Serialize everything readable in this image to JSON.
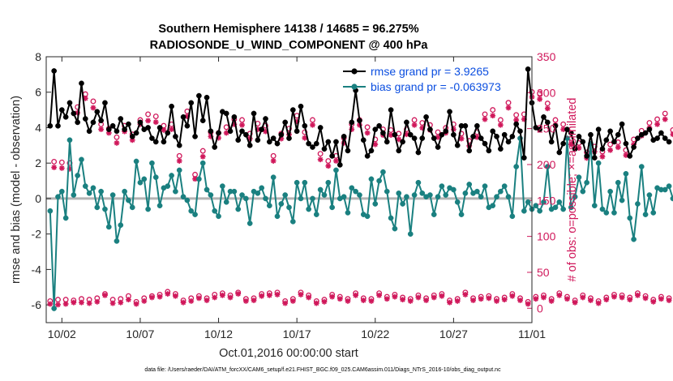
{
  "colors": {
    "rmse": "#000000",
    "bias": "#1a8080",
    "obs": "#d0185b",
    "zero_line": "#b3b3b3",
    "legend_text": "#0b4ee0"
  },
  "footnote": "data file: /Users/raeder/DAI/ATM_forcXX/CAM6_setup/f.e21.FHIST_BGC.f09_025.CAM6assim.011/Diags_NTrS_2016-10/obs_diag_output.nc",
  "chart_data": {
    "type": "line",
    "title": "Southern Hemisphere 14138 / 14685 = 96.275%",
    "subtitle": "RADIOSONDE_U_WIND_COMPONENT @ 400 hPa",
    "xlabel": "Oct.01,2016 00:00:00 start",
    "ylabel": "rmse and bias (model - observation)",
    "y2label": "# of obs: o=possible; ×=assimilated",
    "x_tick_labels": [
      "10/02",
      "10/07",
      "10/12",
      "10/17",
      "10/22",
      "10/27",
      "11/01"
    ],
    "x_tick_days": [
      2,
      7,
      12,
      17,
      22,
      27,
      32
    ],
    "xlim": [
      1,
      32
    ],
    "ylim": [
      -7,
      8
    ],
    "y_ticks": [
      -6,
      -4,
      -2,
      0,
      2,
      4,
      6,
      8
    ],
    "y2lim": [
      -20,
      350
    ],
    "y2_ticks": [
      0,
      50,
      100,
      150,
      200,
      250,
      300,
      350
    ],
    "legend_position": "top-right",
    "x_start": 1.25,
    "x_step": 0.25,
    "series": [
      {
        "name": "rmse grand pr = 3.9265",
        "axis": "left",
        "marker": "filled-circle",
        "values": [
          4.1,
          7.2,
          4.1,
          5.0,
          4.6,
          5.4,
          4.8,
          4.3,
          6.5,
          4.5,
          3.8,
          4.3,
          4.9,
          4.4,
          5.4,
          3.9,
          4.1,
          3.8,
          4.5,
          3.9,
          4.2,
          3.5,
          3.7,
          4.3,
          3.9,
          4.0,
          3.4,
          3.2,
          4.0,
          3.2,
          3.7,
          5.2,
          3.5,
          3.0,
          4.6,
          4.1,
          5.4,
          3.5,
          5.8,
          4.4,
          5.7,
          3.8,
          2.9,
          3.7,
          4.9,
          4.8,
          3.8,
          4.6,
          3.3,
          3.8,
          3.6,
          3.0,
          4.8,
          3.3,
          3.9,
          4.5,
          3.2,
          3.4,
          3.1,
          3.6,
          4.3,
          3.4,
          5.0,
          3.8,
          5.2,
          4.1,
          3.1,
          2.9,
          3.1,
          4.0,
          2.8,
          3.2,
          2.4,
          3.2,
          1.9,
          3.5,
          2.7,
          4.3,
          6.1,
          4.4,
          3.3,
          2.4,
          2.7,
          3.9,
          4.1,
          3.7,
          3.2,
          5.0,
          3.6,
          2.7,
          3.2,
          4.3,
          3.6,
          3.4,
          2.6,
          3.4,
          4.6,
          3.9,
          3.4,
          2.9,
          3.6,
          3.8,
          4.9,
          3.6,
          3.0,
          4.1,
          4.1,
          2.7,
          3.5,
          4.1,
          3.4,
          3.1,
          2.7,
          3.8,
          3.5,
          2.8,
          3.6,
          3.2,
          3.5,
          4.2,
          3.8,
          2.3,
          7.3,
          5.4,
          4.0,
          3.9,
          4.6,
          4.3,
          3.2,
          4.1,
          2.6,
          3.1,
          3.9,
          3.7,
          2.8,
          3.5,
          3.2,
          2.4,
          3.6,
          2.3,
          3.9,
          2.8,
          3.3,
          3.8,
          3.2,
          3.6,
          4.2,
          3.1,
          2.4,
          2.9,
          3.4,
          3.6,
          3.7,
          3.9,
          3.3,
          3.4,
          3.7,
          3.4,
          3.2
        ]
      },
      {
        "name": "bias grand pr = -0.063973",
        "axis": "left",
        "marker": "filled-circle",
        "values": [
          -0.7,
          -6.2,
          0.1,
          0.4,
          -1.1,
          3.3,
          0.2,
          1.3,
          2.2,
          0.7,
          0.3,
          0.6,
          -0.5,
          0.4,
          -0.6,
          -1.6,
          0.2,
          -2.4,
          -1.5,
          0.4,
          -0.1,
          -0.5,
          2.1,
          0.9,
          1.1,
          -0.6,
          2.0,
          1.2,
          -0.4,
          0.6,
          0.7,
          1.3,
          0.4,
          1.6,
          0.1,
          -0.1,
          -0.7,
          -0.9,
          1.1,
          2.0,
          0.5,
          0.2,
          -0.7,
          -1.0,
          0.7,
          -0.2,
          0.4,
          0.4,
          -0.6,
          0.2,
          0.0,
          -1.4,
          0.4,
          0.3,
          0.6,
          0.0,
          -0.4,
          1.2,
          -1.0,
          -0.3,
          0.2,
          -0.5,
          -1.3,
          0.9,
          0.0,
          0.9,
          -0.6,
          0.0,
          -0.9,
          0.5,
          0.2,
          0.9,
          -0.5,
          1.6,
          0.0,
          0.1,
          -0.8,
          0.6,
          0.4,
          0.2,
          -0.9,
          -1.0,
          1.1,
          -0.3,
          1.0,
          1.5,
          0.4,
          -1.1,
          -1.7,
          0.3,
          -0.3,
          0.1,
          -2.0,
          0.2,
          0.9,
          0.3,
          0.1,
          0.2,
          -0.9,
          0.1,
          0.7,
          0.2,
          0.6,
          0.5,
          -0.2,
          -0.9,
          0.3,
          0.8,
          0.3,
          0.4,
          0.1,
          0.7,
          -0.5,
          -0.4,
          0.1,
          0.4,
          0.7,
          0.1,
          -1.0,
          1.8,
          3.4,
          -0.7,
          -0.2,
          -0.6,
          -0.4,
          -0.7,
          -0.2,
          1.8,
          -0.6,
          -0.5,
          -0.2,
          -0.6,
          3.4,
          -0.5,
          0.1,
          1.2,
          0.4,
          0.9,
          3.1,
          -0.4,
          2.0,
          -0.6,
          -0.8,
          0.4,
          -0.8,
          0.9,
          -0.1,
          1.4,
          -1.1,
          -2.3,
          -0.3,
          1.8,
          -0.9,
          0.2,
          -0.8,
          0.6,
          0.5,
          0.5,
          0.7,
          0.0
        ]
      },
      {
        "name": "obs possible",
        "axis": "right",
        "marker": "open-circle",
        "values": [
          10,
          204,
          12,
          203,
          12,
          202,
          11,
          280,
          13,
          298,
          12,
          288,
          14,
          256,
          20,
          250,
          12,
          238,
          13,
          254,
          17,
          242,
          9,
          262,
          14,
          270,
          17,
          267,
          19,
          254,
          23,
          256,
          20,
          212,
          11,
          274,
          14,
          186,
          17,
          219,
          14,
          245,
          19,
          244,
          21,
          252,
          18,
          263,
          22,
          262,
          13,
          243,
          14,
          257,
          20,
          254,
          21,
          212,
          22,
          243,
          10,
          250,
          13,
          268,
          22,
          245,
          18,
          262,
          10,
          215,
          12,
          205,
          19,
          212,
          16,
          237,
          13,
          256,
          21,
          262,
          14,
          252,
          13,
          235,
          21,
          249,
          16,
          248,
          19,
          243,
          15,
          249,
          13,
          262,
          18,
          258,
          14,
          255,
          18,
          245,
          20,
          251,
          11,
          256,
          13,
          243,
          22,
          233,
          14,
          245,
          16,
          270,
          17,
          276,
          13,
          262,
          15,
          286,
          20,
          269,
          14,
          270,
          9,
          301,
          16,
          299,
          18,
          285,
          13,
          262,
          21,
          256,
          16,
          236,
          11,
          230,
          18,
          217,
          14,
          225,
          10,
          218,
          15,
          228,
          19,
          231,
          18,
          220,
          15,
          235,
          21,
          247,
          17,
          258,
          12,
          263,
          16,
          271,
          14,
          248,
          3,
          260
        ]
      },
      {
        "name": "obs assimilated",
        "axis": "right",
        "marker": "asterisk",
        "values": [
          6,
          196,
          5,
          195,
          6,
          194,
          8,
          272,
          8,
          292,
          7,
          279,
          9,
          249,
          18,
          244,
          7,
          230,
          8,
          246,
          12,
          234,
          6,
          256,
          10,
          261,
          15,
          259,
          16,
          248,
          20,
          249,
          17,
          205,
          8,
          267,
          10,
          180,
          14,
          211,
          11,
          239,
          15,
          237,
          18,
          244,
          15,
          256,
          20,
          255,
          10,
          236,
          11,
          249,
          17,
          246,
          18,
          205,
          19,
          236,
          7,
          242,
          10,
          260,
          19,
          237,
          15,
          255,
          7,
          207,
          9,
          198,
          16,
          205,
          13,
          230,
          10,
          249,
          18,
          255,
          11,
          244,
          10,
          228,
          18,
          241,
          13,
          241,
          16,
          235,
          12,
          242,
          10,
          255,
          15,
          251,
          11,
          248,
          15,
          238,
          17,
          244,
          8,
          249,
          10,
          236,
          19,
          226,
          11,
          238,
          13,
          263,
          14,
          268,
          10,
          255,
          12,
          279,
          17,
          262,
          11,
          263,
          6,
          294,
          13,
          291,
          15,
          278,
          10,
          255,
          18,
          249,
          13,
          228,
          8,
          223,
          15,
          209,
          11,
          218,
          7,
          211,
          12,
          220,
          16,
          224,
          15,
          213,
          12,
          228,
          18,
          240,
          14,
          251,
          9,
          256,
          13,
          263,
          11,
          242,
          -2,
          253
        ]
      }
    ]
  }
}
